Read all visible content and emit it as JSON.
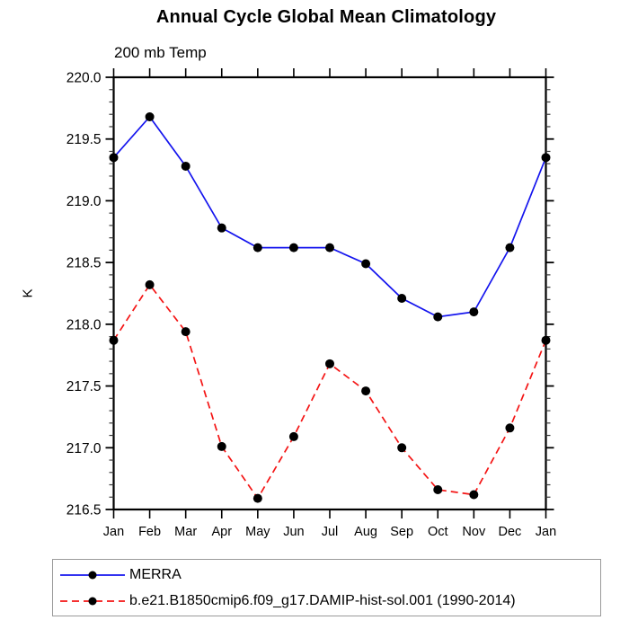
{
  "chart_data": {
    "type": "line",
    "title": "Annual Cycle Global Mean Climatology",
    "subtitle": "200 mb Temp",
    "ylabel": "K",
    "xlabel": "",
    "ylim": [
      216.5,
      220.0
    ],
    "ytick_major": 0.5,
    "ytick_minor": 0.1,
    "grid": false,
    "legend_position": "bottom",
    "categories": [
      "Jan",
      "Feb",
      "Mar",
      "Apr",
      "May",
      "Jun",
      "Jul",
      "Aug",
      "Sep",
      "Oct",
      "Nov",
      "Dec",
      "Jan"
    ],
    "series": [
      {
        "name": "MERRA",
        "color": "#1414ee",
        "style": "solid",
        "marker": "black-dot",
        "values": [
          219.35,
          219.68,
          219.28,
          218.78,
          218.62,
          218.62,
          218.62,
          218.49,
          218.21,
          218.06,
          218.1,
          218.62,
          219.35
        ]
      },
      {
        "name": "b.e21.B1850cmip6.f09_g17.DAMIP-hist-sol.001 (1990-2014)",
        "color": "#f41414",
        "style": "dashed",
        "marker": "black-dot",
        "values": [
          217.87,
          218.32,
          217.94,
          217.01,
          216.59,
          217.09,
          217.68,
          217.46,
          217.0,
          216.66,
          216.62,
          217.16,
          217.87
        ]
      }
    ]
  }
}
